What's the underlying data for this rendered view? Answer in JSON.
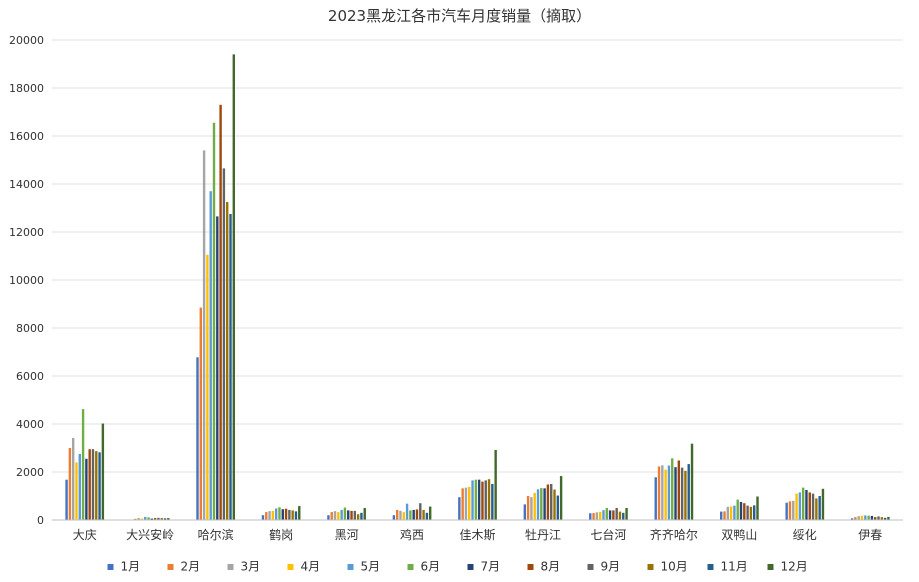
{
  "chart_data": {
    "type": "bar",
    "title": "2023黑龙江各市汽车月度销量（摘取）",
    "xlabel": "",
    "ylabel": "",
    "ylim": [
      0,
      20000
    ],
    "yticks": [
      "0",
      "2000",
      "4000",
      "6000",
      "8000",
      "10000",
      "12000",
      "14000",
      "16000",
      "18000",
      "20000"
    ],
    "grid": true,
    "legend_position": "bottom",
    "categories": [
      "大庆",
      "大兴安岭",
      "哈尔滨",
      "鹤岗",
      "黑河",
      "鸡西",
      "佳木斯",
      "牡丹江",
      "七台河",
      "齐齐哈尔",
      "双鸭山",
      "绥化",
      "伊春"
    ],
    "series": [
      {
        "name": "1月",
        "color": "#4472C4",
        "values": [
          1680,
          20,
          6780,
          200,
          200,
          200,
          950,
          650,
          280,
          1780,
          350,
          720,
          70
        ]
      },
      {
        "name": "2月",
        "color": "#ED7D31",
        "values": [
          3000,
          50,
          8850,
          330,
          330,
          420,
          1320,
          1000,
          290,
          2230,
          360,
          780,
          120
        ]
      },
      {
        "name": "3月",
        "color": "#A5A5A5",
        "values": [
          3420,
          80,
          15400,
          370,
          370,
          380,
          1350,
          950,
          320,
          2280,
          550,
          800,
          160
        ]
      },
      {
        "name": "4月",
        "color": "#FFC000",
        "values": [
          2400,
          60,
          11050,
          380,
          330,
          330,
          1380,
          1130,
          340,
          2100,
          560,
          1100,
          180
        ]
      },
      {
        "name": "5月",
        "color": "#5B9BD5",
        "values": [
          2750,
          130,
          13700,
          480,
          420,
          680,
          1650,
          1280,
          410,
          2270,
          600,
          1150,
          190
        ]
      },
      {
        "name": "6月",
        "color": "#70AD47",
        "values": [
          4620,
          110,
          16550,
          530,
          520,
          400,
          1680,
          1330,
          500,
          2570,
          850,
          1350,
          180
        ]
      },
      {
        "name": "7月",
        "color": "#264478",
        "values": [
          2550,
          60,
          12650,
          450,
          400,
          420,
          1680,
          1320,
          400,
          2200,
          750,
          1250,
          170
        ]
      },
      {
        "name": "8月",
        "color": "#9E480E",
        "values": [
          2950,
          80,
          17300,
          470,
          380,
          440,
          1600,
          1480,
          400,
          2480,
          700,
          1150,
          120
        ]
      },
      {
        "name": "9月",
        "color": "#636363",
        "values": [
          2950,
          90,
          14650,
          420,
          380,
          700,
          1650,
          1500,
          500,
          2180,
          600,
          1100,
          150
        ]
      },
      {
        "name": "10月",
        "color": "#997300",
        "values": [
          2870,
          80,
          13250,
          400,
          240,
          420,
          1700,
          1270,
          350,
          2050,
          550,
          900,
          120
        ]
      },
      {
        "name": "11月",
        "color": "#255E91",
        "values": [
          2820,
          70,
          12750,
          360,
          300,
          300,
          1500,
          1020,
          300,
          2330,
          610,
          1000,
          90
        ]
      },
      {
        "name": "12月",
        "color": "#43682B",
        "values": [
          4020,
          80,
          19400,
          580,
          500,
          560,
          2920,
          1830,
          500,
          3180,
          980,
          1300,
          130
        ]
      }
    ]
  }
}
